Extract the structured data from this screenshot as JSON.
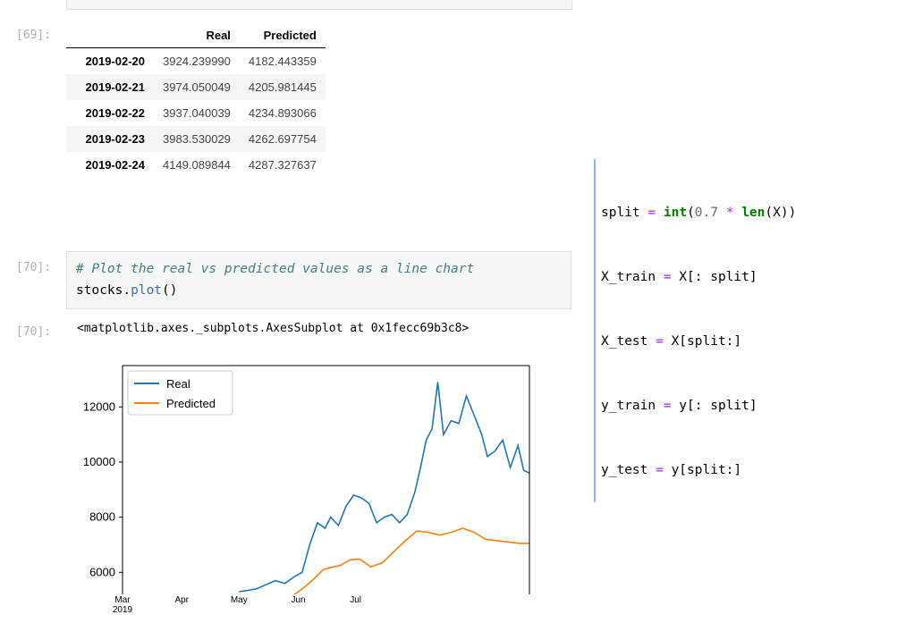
{
  "prompts": {
    "p69_out": "[69]:",
    "p70_in": "[70]:",
    "p70_out": "[70]:"
  },
  "table": {
    "columns": [
      "Real",
      "Predicted"
    ],
    "rows": [
      {
        "index": "2019-02-20",
        "real": "3924.239990",
        "pred": "4182.443359"
      },
      {
        "index": "2019-02-21",
        "real": "3974.050049",
        "pred": "4205.981445"
      },
      {
        "index": "2019-02-22",
        "real": "3937.040039",
        "pred": "4234.893066"
      },
      {
        "index": "2019-02-23",
        "real": "3983.530029",
        "pred": "4262.697754"
      },
      {
        "index": "2019-02-24",
        "real": "4149.089844",
        "pred": "4287.327637"
      }
    ]
  },
  "cell70": {
    "comment": "# Plot the real vs predicted values as a line chart",
    "code_obj": "stocks.",
    "code_fn": "plot",
    "code_paren": "()",
    "output": "<matplotlib.axes._subplots.AxesSubplot at 0x1fecc69b3c8>"
  },
  "sidecode": {
    "lines": [
      "split = int(0.7 * len(X))",
      "X_train = X[: split]",
      "X_test = X[split:]",
      "y_train = y[: split]",
      "y_test = y[split:]"
    ]
  },
  "colors": {
    "real": "#1f77b4",
    "predicted": "#ff7f0e",
    "side_border": "#8fb4e0"
  },
  "chart_data": {
    "type": "line",
    "xlabel": "",
    "ylabel": "",
    "ylim": [
      5200,
      13500
    ],
    "x_ticks": [
      "Mar\n2019",
      "Apr",
      "May",
      "Jun",
      "Jul"
    ],
    "y_ticks": [
      6000,
      8000,
      10000,
      12000
    ],
    "legend": "top-left",
    "series": [
      {
        "name": "Real",
        "color": "#1f77b4",
        "x": [
          "2019-05-01",
          "2019-05-06",
          "2019-05-10",
          "2019-05-15",
          "2019-05-20",
          "2019-05-25",
          "2019-05-30",
          "2019-06-03",
          "2019-06-07",
          "2019-06-11",
          "2019-06-15",
          "2019-06-18",
          "2019-06-22",
          "2019-06-26",
          "2019-06-30",
          "2019-07-04",
          "2019-07-08",
          "2019-07-12",
          "2019-07-16",
          "2019-07-20",
          "2019-07-24",
          "2019-07-28",
          "2019-08-01",
          "2019-08-04",
          "2019-08-07",
          "2019-08-10",
          "2019-08-13",
          "2019-08-16",
          "2019-08-20",
          "2019-08-24",
          "2019-08-28",
          "2019-09-01",
          "2019-09-05",
          "2019-09-08",
          "2019-09-12",
          "2019-09-16",
          "2019-09-20",
          "2019-09-24",
          "2019-09-27",
          "2019-09-30"
        ],
        "values": [
          5300,
          5350,
          5400,
          5550,
          5700,
          5600,
          5850,
          6000,
          7000,
          7800,
          7600,
          8000,
          7700,
          8400,
          8800,
          8700,
          8500,
          7800,
          8000,
          8100,
          7800,
          8100,
          8900,
          9800,
          10800,
          11200,
          12900,
          11000,
          11500,
          11400,
          12400,
          11700,
          11000,
          10200,
          10400,
          10800,
          9800,
          10600,
          9700,
          9600
        ]
      },
      {
        "name": "Predicted",
        "color": "#ff7f0e",
        "x": [
          "2019-05-30",
          "2019-06-04",
          "2019-06-09",
          "2019-06-14",
          "2019-06-18",
          "2019-06-23",
          "2019-06-28",
          "2019-07-03",
          "2019-07-09",
          "2019-07-15",
          "2019-07-21",
          "2019-07-27",
          "2019-08-02",
          "2019-08-08",
          "2019-08-14",
          "2019-08-20",
          "2019-08-26",
          "2019-09-01",
          "2019-09-07",
          "2019-09-13",
          "2019-09-19",
          "2019-09-25",
          "2019-09-30"
        ],
        "values": [
          5200,
          5450,
          5750,
          6100,
          6180,
          6250,
          6450,
          6480,
          6200,
          6350,
          6750,
          7150,
          7500,
          7450,
          7350,
          7450,
          7600,
          7450,
          7200,
          7150,
          7100,
          7050,
          7050
        ]
      }
    ]
  }
}
